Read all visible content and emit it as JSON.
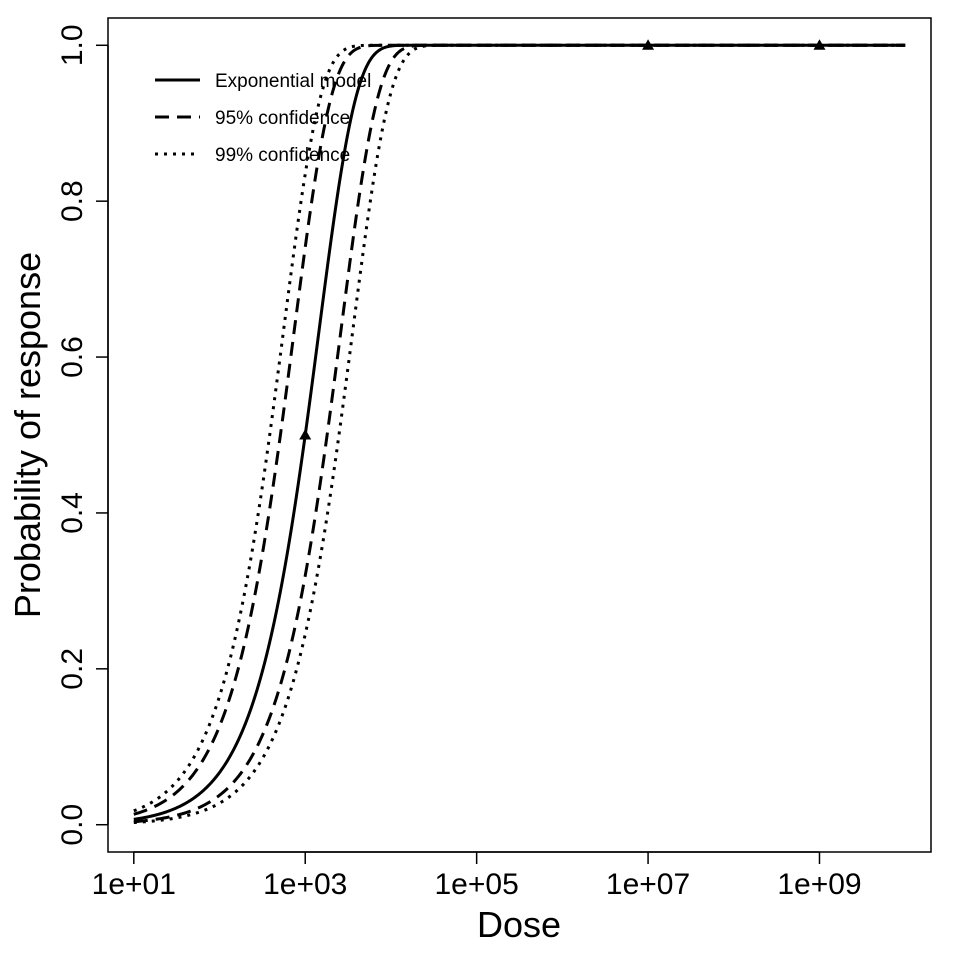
{
  "chart_data": {
    "type": "line",
    "xlabel": "Dose",
    "ylabel": "Probability of response",
    "x_scale": "log10",
    "xlim": [
      5,
      20000000000
    ],
    "ylim": [
      -0.035,
      1.035
    ],
    "x_ticks": [
      10,
      1000,
      100000,
      10000000,
      1000000000
    ],
    "x_tick_labels": [
      "1e+01",
      "1e+03",
      "1e+05",
      "1e+07",
      "1e+09"
    ],
    "y_ticks": [
      0.0,
      0.2,
      0.4,
      0.6,
      0.8,
      1.0
    ],
    "y_tick_labels": [
      "0.0",
      "0.2",
      "0.4",
      "0.6",
      "0.8",
      "1.0"
    ],
    "grid": false,
    "legend_position": "top-left",
    "legend": [
      {
        "label": "Exponential model",
        "line_style": "solid"
      },
      {
        "label": "95% confidence",
        "line_style": "dashed"
      },
      {
        "label": "99% confidence",
        "line_style": "dotted"
      }
    ],
    "series": [
      {
        "model": "exponential",
        "k": 0.0006931,
        "line_style": "solid",
        "x": [
          10,
          30,
          100,
          300,
          1000,
          3000,
          10000,
          100000,
          1000000,
          10000000,
          100000000,
          1000000000,
          10000000000
        ],
        "values": [
          0.0069,
          0.0206,
          0.067,
          0.1877,
          0.5,
          0.875,
          0.999,
          1.0,
          1.0,
          1.0,
          1.0,
          1.0,
          1.0
        ]
      },
      {
        "model": "exponential",
        "k": 0.00135,
        "line_style": "dashed",
        "x": [
          10,
          30,
          100,
          300,
          1000,
          3000,
          10000,
          100000,
          1000000,
          10000000,
          100000000,
          1000000000,
          10000000000
        ],
        "values": [
          0.0134,
          0.0397,
          0.1263,
          0.333,
          0.7408,
          0.9826,
          1.0,
          1.0,
          1.0,
          1.0,
          1.0,
          1.0,
          1.0
        ]
      },
      {
        "model": "exponential",
        "k": 0.000385,
        "line_style": "dashed",
        "x": [
          10,
          30,
          100,
          300,
          1000,
          3000,
          10000,
          100000,
          1000000,
          10000000,
          100000000,
          1000000000,
          10000000000
        ],
        "values": [
          0.0038,
          0.0115,
          0.0378,
          0.109,
          0.3195,
          0.6849,
          0.9787,
          1.0,
          1.0,
          1.0,
          1.0,
          1.0,
          1.0
        ]
      },
      {
        "model": "exponential",
        "k": 0.0018,
        "line_style": "dotted",
        "x": [
          10,
          30,
          100,
          300,
          1000,
          3000,
          10000,
          100000,
          1000000,
          10000000,
          100000000,
          1000000000,
          10000000000
        ],
        "values": [
          0.0178,
          0.0526,
          0.1647,
          0.4173,
          0.8347,
          0.9955,
          1.0,
          1.0,
          1.0,
          1.0,
          1.0,
          1.0,
          1.0
        ]
      },
      {
        "model": "exponential",
        "k": 0.00028,
        "line_style": "dotted",
        "x": [
          10,
          30,
          100,
          300,
          1000,
          3000,
          10000,
          100000,
          1000000,
          10000000,
          100000000,
          1000000000,
          10000000000
        ],
        "values": [
          0.0028,
          0.0084,
          0.0276,
          0.0806,
          0.2442,
          0.5683,
          0.9392,
          1.0,
          1.0,
          1.0,
          1.0,
          1.0,
          1.0
        ]
      }
    ],
    "observed_points": {
      "marker": "triangle",
      "x": [
        1000,
        10000000,
        1000000000
      ],
      "values": [
        0.5,
        1.0,
        1.0
      ]
    }
  }
}
